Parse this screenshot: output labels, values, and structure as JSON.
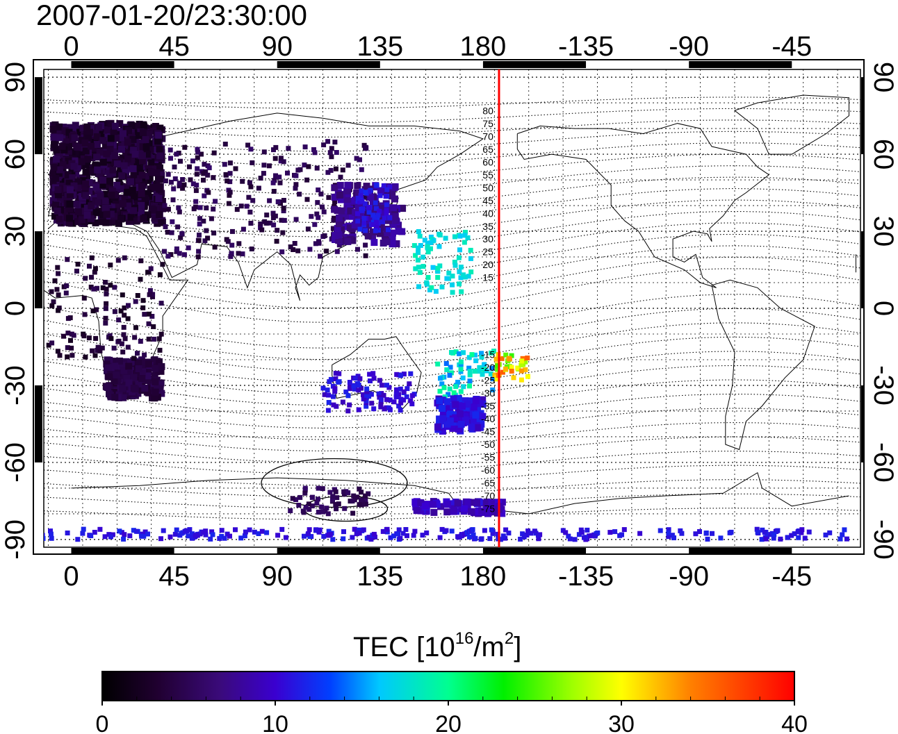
{
  "title": "2007-01-20/23:30:00",
  "map": {
    "lon_ticks_top": [
      "0",
      "45",
      "90",
      "135",
      "180",
      "-135",
      "-90",
      "-45"
    ],
    "lon_ticks_bottom": [
      "0",
      "45",
      "90",
      "135",
      "180",
      "-135",
      "-90",
      "-45"
    ],
    "lat_ticks_left": [
      "90",
      "60",
      "30",
      "0",
      "-30",
      "-60",
      "-90"
    ],
    "lat_ticks_right": [
      "90",
      "60",
      "30",
      "0",
      "-30",
      "-60",
      "-90"
    ],
    "lon_range": [
      -12,
      345
    ],
    "lat_range": [
      -93,
      93
    ],
    "meridian_lon": 187,
    "meridian_color": "#ff0000",
    "contour_labels": [
      "80",
      "75",
      "70",
      "65",
      "60",
      "55",
      "50",
      "45",
      "40",
      "35",
      "30",
      "25",
      "20",
      "15",
      "-15",
      "-20",
      "-25",
      "-30",
      "-35",
      "-40",
      "-45",
      "-50",
      "-55",
      "-60",
      "-65",
      "-70",
      "-75"
    ]
  },
  "colorbar": {
    "title": "TEC  [10",
    "title_sup": "16",
    "title_unit": "/m",
    "title_unit_sup": "2",
    "title_close": "]",
    "ticks": [
      "0",
      "10",
      "20",
      "30",
      "40"
    ],
    "min": 0,
    "max": 40
  }
}
